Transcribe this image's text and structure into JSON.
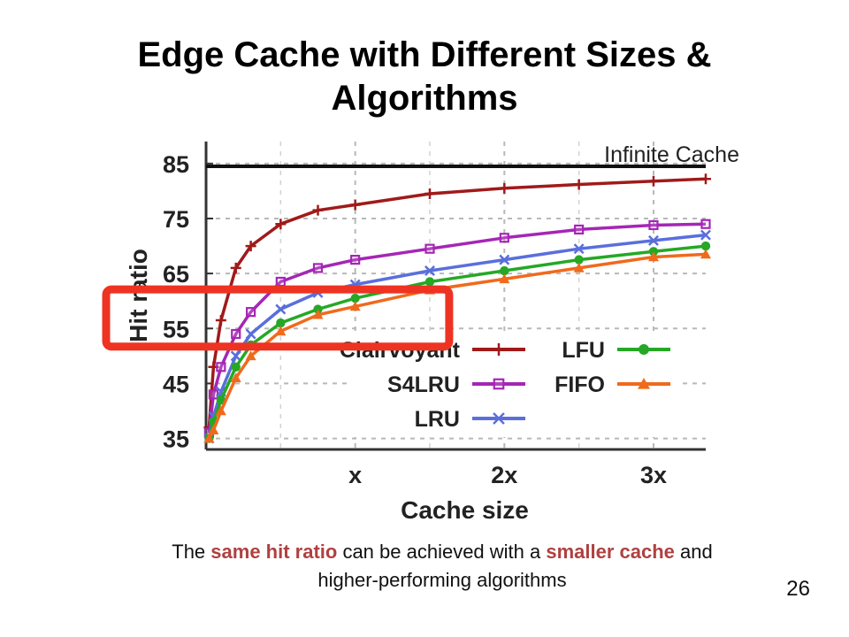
{
  "slide": {
    "title_line1": "Edge Cache with Different Sizes &",
    "title_line2": "Algorithms",
    "caption": {
      "p1": "The ",
      "h1": "same hit ratio",
      "p2": " can be achieved with a ",
      "h2": "smaller cache",
      "p3": " and",
      "line2": "higher-performing algorithms"
    },
    "slide_number": "26",
    "highlight_color": "#b04040"
  },
  "chart_data": {
    "type": "line",
    "xlabel": "Cache size",
    "ylabel": "Hit ratio",
    "x_ticks": [
      {
        "value": 1,
        "label": "x"
      },
      {
        "value": 2,
        "label": "2x"
      },
      {
        "value": 3,
        "label": "3x"
      }
    ],
    "y_ticks": [
      35,
      45,
      55,
      65,
      75,
      85
    ],
    "xlim": [
      0,
      3.35
    ],
    "ylim": [
      33,
      89
    ],
    "grid": true,
    "legend_position": "bottom-right",
    "reference_line": {
      "label": "Infinite Cache",
      "value": 84.5,
      "color": "#111111"
    },
    "annotation": {
      "shape": "rectangle",
      "color": "#ee3322",
      "x_range": [
        -0.67,
        1.63
      ],
      "y_range": [
        51.7,
        62.1
      ]
    },
    "series": [
      {
        "name": "Clairvoyant",
        "color": "#a01a1a",
        "marker": "plus",
        "x": [
          0.02,
          0.05,
          0.1,
          0.2,
          0.3,
          0.5,
          0.75,
          1.0,
          1.5,
          2.0,
          2.5,
          3.0,
          3.35
        ],
        "y": [
          37,
          48,
          56.5,
          66,
          70,
          74,
          76.5,
          77.5,
          79.5,
          80.5,
          81.2,
          81.8,
          82.2
        ]
      },
      {
        "name": "S4LRU",
        "color": "#a526b5",
        "marker": "square",
        "x": [
          0.02,
          0.05,
          0.1,
          0.2,
          0.3,
          0.5,
          0.75,
          1.0,
          1.5,
          2.0,
          2.5,
          3.0,
          3.35
        ],
        "y": [
          36,
          43,
          48,
          54,
          58,
          63.5,
          66,
          67.5,
          69.5,
          71.5,
          73,
          73.8,
          74
        ]
      },
      {
        "name": "LRU",
        "color": "#5a6fdc",
        "marker": "x",
        "x": [
          0.02,
          0.05,
          0.1,
          0.2,
          0.3,
          0.5,
          0.75,
          1.0,
          1.5,
          2.0,
          2.5,
          3.0,
          3.35
        ],
        "y": [
          35,
          39,
          43.5,
          50,
          54,
          58.5,
          61.5,
          63,
          65.5,
          67.5,
          69.5,
          71,
          72
        ]
      },
      {
        "name": "LFU",
        "color": "#25a825",
        "marker": "circle",
        "x": [
          0.02,
          0.05,
          0.1,
          0.2,
          0.3,
          0.5,
          0.75,
          1.0,
          1.5,
          2.0,
          2.5,
          3.0,
          3.35
        ],
        "y": [
          35,
          38,
          42,
          48,
          52,
          56,
          58.5,
          60.5,
          63.5,
          65.5,
          67.5,
          69,
          70
        ]
      },
      {
        "name": "FIFO",
        "color": "#f06a1c",
        "marker": "triangle",
        "x": [
          0.02,
          0.05,
          0.1,
          0.2,
          0.3,
          0.5,
          0.75,
          1.0,
          1.5,
          2.0,
          2.5,
          3.0,
          3.35
        ],
        "y": [
          35,
          36.5,
          40,
          46,
          50,
          54.5,
          57.5,
          59,
          62,
          64,
          66,
          68,
          68.5
        ]
      }
    ]
  }
}
